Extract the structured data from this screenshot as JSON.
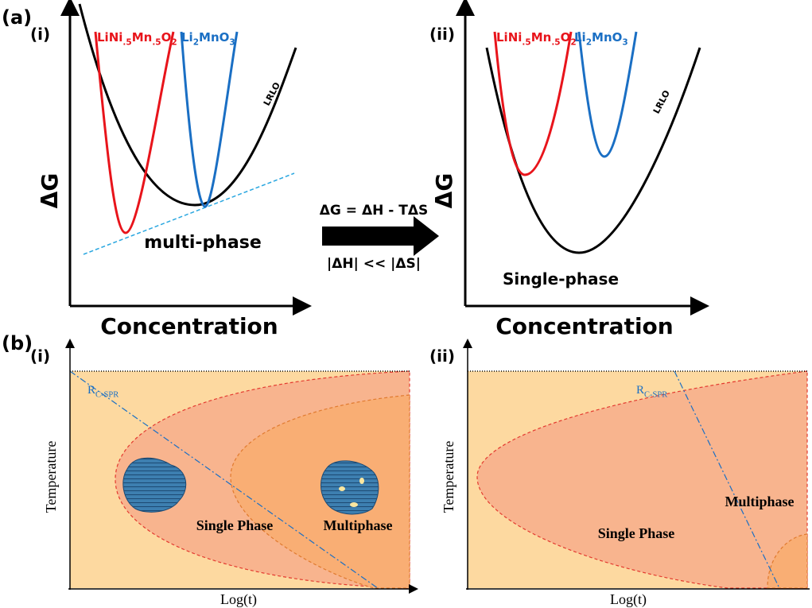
{
  "panel_a": {
    "label": "(a)",
    "left": {
      "label": "(i)",
      "y_axis": "ΔG",
      "x_axis": "Concentration",
      "red_label": [
        {
          "text": "LiNi"
        },
        {
          "text": ".5",
          "sub": true
        },
        {
          "text": "Mn"
        },
        {
          "text": ".5",
          "sub": true
        },
        {
          "text": "O"
        },
        {
          "text": "2",
          "sub": true
        }
      ],
      "blue_label": [
        {
          "text": "Li"
        },
        {
          "text": "2",
          "sub": true
        },
        {
          "text": "MnO"
        },
        {
          "text": "3",
          "sub": true
        }
      ],
      "black_label": "LRLO",
      "annotation": "multi-phase"
    },
    "arrow": {
      "top": "ΔG = ΔH - TΔS",
      "bottom": "|ΔH| << |ΔS|"
    },
    "right": {
      "label": "(ii)",
      "y_axis": "ΔG",
      "x_axis": "Concentration",
      "red_label": [
        {
          "text": "LiNi"
        },
        {
          "text": ".5",
          "sub": true
        },
        {
          "text": "Mn"
        },
        {
          "text": ".5",
          "sub": true
        },
        {
          "text": "O"
        },
        {
          "text": "2",
          "sub": true
        }
      ],
      "blue_label": [
        {
          "text": "Li"
        },
        {
          "text": "2",
          "sub": true
        },
        {
          "text": "MnO"
        },
        {
          "text": "3",
          "sub": true
        }
      ],
      "black_label": "LRLO",
      "annotation": "Single-phase"
    }
  },
  "panel_b": {
    "label": "(b)",
    "left": {
      "label": "(i)",
      "y_axis": "Temperature",
      "x_axis": "Log(t)",
      "line_label": [
        {
          "text": "R"
        },
        {
          "text": "C-SPR",
          "sub": true
        }
      ],
      "single": "Single Phase",
      "multi": "Multiphase"
    },
    "right": {
      "label": "(ii)",
      "y_axis": "Temperature",
      "x_axis": "Log(t)",
      "line_label": [
        {
          "text": "R"
        },
        {
          "text": "C-SPR",
          "sub": true
        }
      ],
      "single": "Single Phase",
      "multi": "Multiphase"
    }
  }
}
